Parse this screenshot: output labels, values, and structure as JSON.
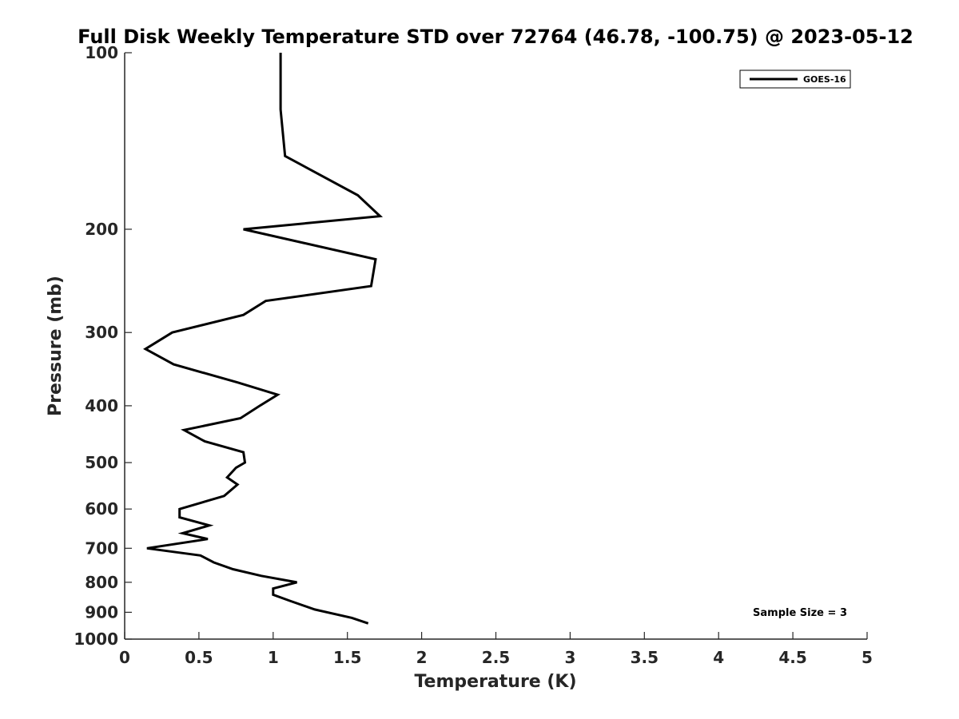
{
  "chart_data": {
    "type": "line",
    "title": "Full Disk Weekly Temperature STD over 72764 (46.78, -100.75) @ 2023-05-12",
    "xlabel": "Temperature (K)",
    "ylabel": "Pressure (mb)",
    "xlim": [
      0,
      5
    ],
    "ylim": [
      100,
      1000
    ],
    "y_scale": "log",
    "y_reversed": true,
    "x_ticks": [
      "0",
      "0.5",
      "1",
      "1.5",
      "2",
      "2.5",
      "3",
      "3.5",
      "4",
      "4.5",
      "5"
    ],
    "y_ticks": [
      "100",
      "200",
      "300",
      "400",
      "500",
      "600",
      "700",
      "800",
      "900",
      "1000"
    ],
    "grid": false,
    "legend": {
      "position": "top-right",
      "entries": [
        "GOES-16"
      ]
    },
    "annotation": "Sample Size = 3",
    "series": [
      {
        "name": "GOES-16",
        "color": "#000000",
        "points": [
          [
            1.05,
            100
          ],
          [
            1.05,
            125
          ],
          [
            1.08,
            150
          ],
          [
            1.57,
            175
          ],
          [
            1.72,
            190
          ],
          [
            0.8,
            200
          ],
          [
            1.69,
            225
          ],
          [
            1.66,
            250
          ],
          [
            0.95,
            265
          ],
          [
            0.8,
            280
          ],
          [
            0.32,
            300
          ],
          [
            0.14,
            320
          ],
          [
            0.33,
            340
          ],
          [
            0.76,
            365
          ],
          [
            1.03,
            383
          ],
          [
            0.91,
            400
          ],
          [
            0.78,
            420
          ],
          [
            0.4,
            440
          ],
          [
            0.54,
            460
          ],
          [
            0.8,
            480
          ],
          [
            0.81,
            500
          ],
          [
            0.75,
            510
          ],
          [
            0.69,
            530
          ],
          [
            0.76,
            545
          ],
          [
            0.67,
            570
          ],
          [
            0.37,
            600
          ],
          [
            0.37,
            620
          ],
          [
            0.57,
            640
          ],
          [
            0.39,
            660
          ],
          [
            0.56,
            675
          ],
          [
            0.15,
            700
          ],
          [
            0.51,
            720
          ],
          [
            0.6,
            740
          ],
          [
            0.73,
            760
          ],
          [
            0.92,
            780
          ],
          [
            1.16,
            800
          ],
          [
            1.0,
            820
          ],
          [
            1.0,
            840
          ],
          [
            1.11,
            860
          ],
          [
            1.28,
            890
          ],
          [
            1.53,
            920
          ],
          [
            1.64,
            940
          ]
        ]
      }
    ]
  }
}
